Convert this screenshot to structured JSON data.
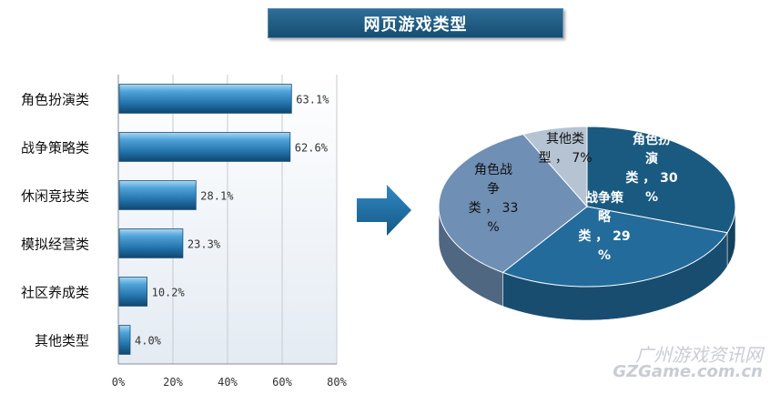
{
  "chart_data": [
    {
      "type": "bar",
      "orientation": "horizontal",
      "title": "网页游戏类型",
      "categories": [
        "角色扮演类",
        "战争策略类",
        "休闲竞技类",
        "模拟经营类",
        "社区养成类",
        "其他类型"
      ],
      "values": [
        63.1,
        62.6,
        28.1,
        23.3,
        10.2,
        4.0
      ],
      "value_labels": [
        "63.1%",
        "62.6%",
        "28.1%",
        "23.3%",
        "10.2%",
        "4.0%"
      ],
      "xlim": [
        0,
        80
      ],
      "xticks": [
        "0%",
        "20%",
        "40%",
        "60%",
        "80%"
      ],
      "grid": true,
      "bar_color": "#2b82bd"
    },
    {
      "type": "pie",
      "style": "3d",
      "slices": [
        {
          "label_lines": [
            "角色扮",
            "演",
            "类 ， 30",
            "%"
          ],
          "value": 30,
          "color": "#1a5a80"
        },
        {
          "label_lines": [
            "战争策",
            "略",
            "类 ， 29",
            "%"
          ],
          "value": 29,
          "color": "#236b9b"
        },
        {
          "label_lines": [
            "角色战",
            "争",
            "类 ， 33",
            "%"
          ],
          "value": 33,
          "color": "#6f8fb5"
        },
        {
          "label_lines": [
            "其他类",
            "型 ， 7%"
          ],
          "value": 7,
          "color": "#b5c3d3"
        }
      ]
    }
  ],
  "watermark": {
    "line1": "广州游戏资讯网",
    "line2": "GZGame.com.cn"
  }
}
